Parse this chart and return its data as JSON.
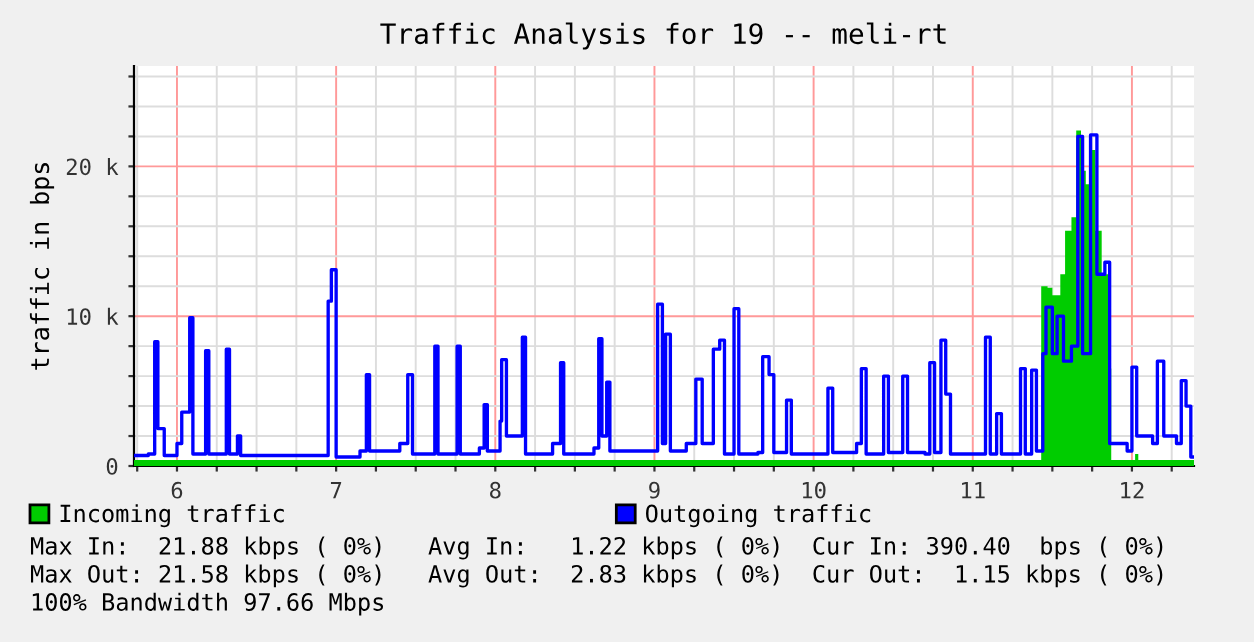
{
  "chart_data": {
    "type": "step",
    "title": "Traffic Analysis for 19 -- meli-rt",
    "ylabel": "traffic in bps",
    "xlim": [
      5.73,
      12.39
    ],
    "ylim": [
      0,
      26700
    ],
    "xticks": [
      {
        "value": 5.75,
        "label": null
      },
      6,
      {
        "value": 6.25,
        "label": null
      },
      {
        "value": 6.5,
        "label": null
      },
      {
        "value": 6.75,
        "label": null
      },
      7,
      {
        "value": 7.25,
        "label": null
      },
      {
        "value": 7.5,
        "label": null
      },
      {
        "value": 7.75,
        "label": null
      },
      8,
      {
        "value": 8.25,
        "label": null
      },
      {
        "value": 8.5,
        "label": null
      },
      {
        "value": 8.75,
        "label": null
      },
      9,
      {
        "value": 9.25,
        "label": null
      },
      {
        "value": 9.5,
        "label": null
      },
      {
        "value": 9.75,
        "label": null
      },
      10,
      {
        "value": 10.25,
        "label": null
      },
      {
        "value": 10.5,
        "label": null
      },
      {
        "value": 10.75,
        "label": null
      },
      11,
      {
        "value": 11.25,
        "label": null
      },
      {
        "value": 11.5,
        "label": null
      },
      {
        "value": 11.75,
        "label": null
      },
      12,
      {
        "value": 12.25,
        "label": null
      }
    ],
    "yticks": [
      0,
      {
        "value": 2000,
        "label": null
      },
      {
        "value": 4000,
        "label": null
      },
      {
        "value": 6000,
        "label": null
      },
      {
        "value": 8000,
        "label": null
      },
      {
        "value": 10000,
        "label": "10 k"
      },
      {
        "value": 12000,
        "label": null
      },
      {
        "value": 14000,
        "label": null
      },
      {
        "value": 16000,
        "label": null
      },
      {
        "value": 18000,
        "label": null
      },
      {
        "value": 20000,
        "label": "20 k"
      },
      {
        "value": 22000,
        "label": null
      },
      {
        "value": 24000,
        "label": null
      },
      {
        "value": 26000,
        "label": null
      }
    ],
    "grid": true,
    "legend": "bottom",
    "series": [
      {
        "name": "Incoming traffic",
        "type": "area",
        "color": "#00cc00",
        "x": [
          5.73,
          7.0,
          9.0,
          11.4,
          11.43,
          11.47,
          11.5,
          11.55,
          11.58,
          11.62,
          11.65,
          11.68,
          11.71,
          11.74,
          11.77,
          11.81,
          11.85,
          11.87,
          12.0,
          12.02,
          12.04,
          12.39
        ],
        "values": [
          400,
          400,
          400,
          400,
          12000,
          11900,
          11400,
          12800,
          15700,
          16600,
          22400,
          19700,
          18800,
          21100,
          15700,
          12800,
          6500,
          400,
          400,
          800,
          400,
          400
        ]
      },
      {
        "name": "Outgoing traffic",
        "color": "#0000ff",
        "x": [
          5.73,
          5.82,
          5.86,
          5.88,
          5.92,
          6.0,
          6.03,
          6.06,
          6.08,
          6.1,
          6.16,
          6.18,
          6.2,
          6.29,
          6.31,
          6.33,
          6.38,
          6.4,
          6.9,
          6.95,
          6.97,
          7.0,
          7.15,
          7.19,
          7.21,
          7.4,
          7.45,
          7.48,
          7.6,
          7.62,
          7.64,
          7.74,
          7.76,
          7.78,
          7.9,
          7.93,
          7.95,
          8.03,
          8.04,
          8.07,
          8.14,
          8.17,
          8.19,
          8.36,
          8.41,
          8.43,
          8.62,
          8.65,
          8.67,
          8.7,
          8.72,
          8.99,
          9.02,
          9.05,
          9.07,
          9.1,
          9.2,
          9.26,
          9.3,
          9.37,
          9.41,
          9.44,
          9.48,
          9.5,
          9.53,
          9.65,
          9.68,
          9.72,
          9.75,
          9.83,
          9.86,
          10.07,
          10.09,
          10.12,
          10.27,
          10.3,
          10.33,
          10.44,
          10.47,
          10.56,
          10.59,
          10.7,
          10.73,
          10.76,
          10.8,
          10.83,
          10.86,
          11.05,
          11.08,
          11.11,
          11.15,
          11.18,
          11.28,
          11.3,
          11.33,
          11.37,
          11.4,
          11.44,
          11.46,
          11.5,
          11.53,
          11.57,
          11.62,
          11.66,
          11.69,
          11.74,
          11.78,
          11.83,
          11.86,
          11.97,
          12.0,
          12.03,
          12.13,
          12.16,
          12.2,
          12.28,
          12.31,
          12.34,
          12.37,
          12.39
        ],
        "values": [
          700,
          800,
          8300,
          2500,
          700,
          1500,
          3600,
          3600,
          9900,
          800,
          800,
          7700,
          800,
          800,
          7800,
          800,
          2000,
          700,
          700,
          11000,
          13100,
          600,
          1000,
          6100,
          1000,
          1500,
          6100,
          800,
          800,
          8000,
          800,
          800,
          8000,
          800,
          1200,
          4100,
          1000,
          3000,
          7100,
          2000,
          2000,
          8600,
          800,
          1500,
          6900,
          800,
          1200,
          8500,
          2000,
          5600,
          1000,
          1000,
          10800,
          1500,
          8800,
          1000,
          1500,
          5800,
          1500,
          7800,
          8400,
          800,
          800,
          10500,
          800,
          900,
          7300,
          6100,
          900,
          4400,
          800,
          800,
          5200,
          900,
          1500,
          6500,
          800,
          6000,
          900,
          6000,
          900,
          800,
          6900,
          900,
          8400,
          4800,
          800,
          800,
          8600,
          800,
          3500,
          800,
          800,
          6500,
          800,
          6400,
          1000,
          7500,
          10600,
          7500,
          10000,
          7000,
          8000,
          22000,
          7500,
          22100,
          12800,
          13600,
          1500,
          1000,
          6600,
          2000,
          1500,
          7000,
          2000,
          1500,
          5700,
          4000,
          600,
          600
        ]
      }
    ],
    "annotations": [
      "Max In:  21.88 kbps ( 0%)   Avg In:   1.22 kbps ( 0%)  Cur In: 390.40  bps ( 0%)",
      "Max Out: 21.58 kbps ( 0%)   Avg Out:  2.83 kbps ( 0%)  Cur Out:  1.15 kbps ( 0%)",
      "100% Bandwidth 97.66 Mbps"
    ]
  }
}
